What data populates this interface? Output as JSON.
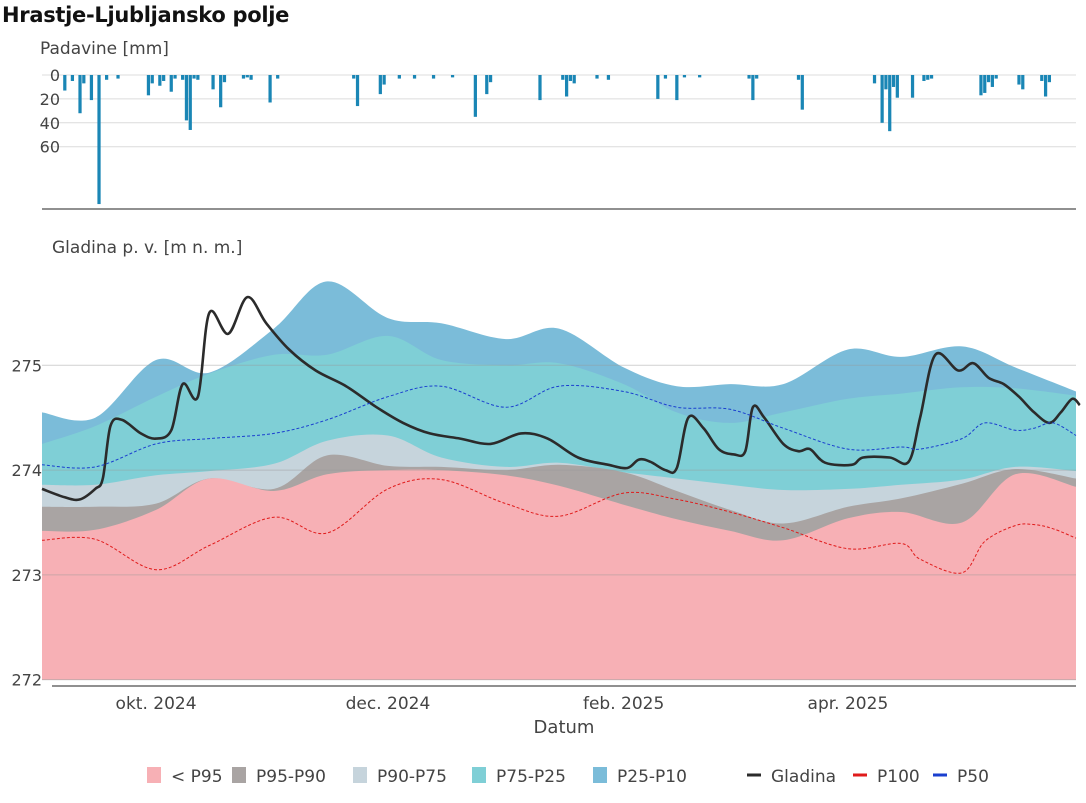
{
  "title": "Hrastje-Ljubljansko polje",
  "chart_data": [
    {
      "type": "bar",
      "ylabel": "Padavine [mm]",
      "yticks": [
        0,
        20,
        40,
        60
      ],
      "ylim_reversed": [
        0,
        110
      ],
      "x_domain": [
        "2024-09-01",
        "2025-05-31"
      ],
      "bars": [
        [
          "2024-09-07",
          13
        ],
        [
          "2024-09-09",
          5
        ],
        [
          "2024-09-11",
          32
        ],
        [
          "2024-09-12",
          7
        ],
        [
          "2024-09-14",
          21
        ],
        [
          "2024-09-16",
          108
        ],
        [
          "2024-09-18",
          4
        ],
        [
          "2024-09-21",
          3
        ],
        [
          "2024-09-29",
          17
        ],
        [
          "2024-09-30",
          7
        ],
        [
          "2024-10-02",
          9
        ],
        [
          "2024-10-03",
          5
        ],
        [
          "2024-10-05",
          14
        ],
        [
          "2024-10-06",
          3
        ],
        [
          "2024-10-08",
          4
        ],
        [
          "2024-10-09",
          38
        ],
        [
          "2024-10-10",
          46
        ],
        [
          "2024-10-11",
          3
        ],
        [
          "2024-10-12",
          4
        ],
        [
          "2024-10-16",
          12
        ],
        [
          "2024-10-18",
          27
        ],
        [
          "2024-10-19",
          6
        ],
        [
          "2024-10-24",
          3
        ],
        [
          "2024-10-25",
          2
        ],
        [
          "2024-10-26",
          4
        ],
        [
          "2024-10-31",
          23
        ],
        [
          "2024-11-02",
          3
        ],
        [
          "2024-11-22",
          3
        ],
        [
          "2024-11-23",
          26
        ],
        [
          "2024-11-29",
          16
        ],
        [
          "2024-11-30",
          8
        ],
        [
          "2024-12-04",
          3
        ],
        [
          "2024-12-08",
          3
        ],
        [
          "2024-12-13",
          3
        ],
        [
          "2024-12-18",
          2
        ],
        [
          "2024-12-24",
          35
        ],
        [
          "2024-12-27",
          16
        ],
        [
          "2024-12-28",
          6
        ],
        [
          "2025-01-10",
          21
        ],
        [
          "2025-01-16",
          4
        ],
        [
          "2025-01-17",
          18
        ],
        [
          "2025-01-18",
          5
        ],
        [
          "2025-01-19",
          7
        ],
        [
          "2025-01-25",
          3
        ],
        [
          "2025-01-28",
          4
        ],
        [
          "2025-02-10",
          20
        ],
        [
          "2025-02-12",
          3
        ],
        [
          "2025-02-15",
          21
        ],
        [
          "2025-02-17",
          2
        ],
        [
          "2025-02-21",
          2
        ],
        [
          "2025-03-06",
          3
        ],
        [
          "2025-03-07",
          21
        ],
        [
          "2025-03-08",
          3
        ],
        [
          "2025-03-19",
          4
        ],
        [
          "2025-03-20",
          29
        ],
        [
          "2025-04-08",
          7
        ],
        [
          "2025-04-10",
          40
        ],
        [
          "2025-04-11",
          12
        ],
        [
          "2025-04-12",
          47
        ],
        [
          "2025-04-13",
          10
        ],
        [
          "2025-04-14",
          19
        ],
        [
          "2025-04-18",
          19
        ],
        [
          "2025-04-21",
          5
        ],
        [
          "2025-04-22",
          4
        ],
        [
          "2025-04-23",
          3
        ],
        [
          "2025-05-06",
          17
        ],
        [
          "2025-05-07",
          15
        ],
        [
          "2025-05-08",
          6
        ],
        [
          "2025-05-09",
          10
        ],
        [
          "2025-05-10",
          3
        ],
        [
          "2025-05-16",
          8
        ],
        [
          "2025-05-17",
          12
        ],
        [
          "2025-05-22",
          5
        ],
        [
          "2025-05-23",
          18
        ],
        [
          "2025-05-24",
          6
        ]
      ],
      "color": "#1a86b5"
    },
    {
      "type": "area",
      "ylabel": "Gladina p. v. [m n. m.]",
      "xlabel": "Datum",
      "yticks": [
        272,
        273,
        274,
        275
      ],
      "ylim": [
        271.94,
        276.3
      ],
      "x_domain": [
        "2024-09-01",
        "2025-05-31"
      ],
      "xticks": [
        {
          "date": "2024-10-01",
          "label": "okt. 2024"
        },
        {
          "date": "2024-12-01",
          "label": "dec. 2024"
        },
        {
          "date": "2025-02-01",
          "label": "feb. 2025"
        },
        {
          "date": "2025-04-01",
          "label": "apr. 2025"
        }
      ],
      "band_dates": [
        "2024-09-01",
        "2024-09-15",
        "2024-10-01",
        "2024-10-15",
        "2024-11-01",
        "2024-11-15",
        "2024-12-01",
        "2024-12-15",
        "2025-01-01",
        "2025-01-15",
        "2025-02-01",
        "2025-02-15",
        "2025-03-01",
        "2025-03-15",
        "2025-04-01",
        "2025-04-15",
        "2025-05-01",
        "2025-05-15",
        "2025-05-31"
      ],
      "bands": [
        {
          "name": "< P95",
          "color": "#f7b0b5",
          "values": [
            273.42,
            273.43,
            273.62,
            273.92,
            273.8,
            273.96,
            274.0,
            274.0,
            273.95,
            273.85,
            273.67,
            273.53,
            273.42,
            273.33,
            273.54,
            273.6,
            273.5,
            273.96,
            273.84
          ]
        },
        {
          "name": "P95-P90",
          "color": "#a9a4a3",
          "values": [
            273.65,
            273.65,
            273.68,
            273.92,
            273.82,
            274.14,
            274.04,
            274.03,
            274.0,
            274.05,
            273.98,
            273.8,
            273.62,
            273.49,
            273.65,
            273.73,
            273.87,
            274.01,
            273.92
          ]
        },
        {
          "name": "P90-P75",
          "color": "#c6d4dc",
          "values": [
            273.86,
            273.86,
            273.95,
            273.99,
            274.06,
            274.28,
            274.33,
            274.12,
            274.03,
            274.07,
            273.98,
            273.92,
            273.86,
            273.81,
            273.82,
            273.86,
            273.91,
            274.03,
            273.99
          ]
        },
        {
          "name": "P75-P25",
          "color": "#7fcfd6",
          "values": [
            274.25,
            274.42,
            274.7,
            274.92,
            275.1,
            275.1,
            275.28,
            275.05,
            275.0,
            275.02,
            274.82,
            274.55,
            274.45,
            274.55,
            274.68,
            274.73,
            274.79,
            274.78,
            274.71
          ]
        },
        {
          "name": "P25-P10",
          "color": "#7bbcd9",
          "values": [
            274.55,
            274.5,
            275.05,
            274.93,
            275.35,
            275.8,
            275.45,
            275.4,
            275.25,
            275.35,
            274.98,
            274.8,
            274.82,
            274.82,
            275.15,
            275.08,
            275.18,
            274.98,
            274.75
          ]
        }
      ],
      "lines": [
        {
          "name": "Gladina",
          "color": "#2b2b2b",
          "style": "solid",
          "points": [
            [
              "2024-09-01",
              273.82
            ],
            [
              "2024-09-07",
              273.74
            ],
            [
              "2024-09-11",
              273.72
            ],
            [
              "2024-09-15",
              273.82
            ],
            [
              "2024-09-17",
              273.92
            ],
            [
              "2024-09-19",
              274.42
            ],
            [
              "2024-09-22",
              274.48
            ],
            [
              "2024-09-27",
              274.35
            ],
            [
              "2024-10-01",
              274.3
            ],
            [
              "2024-10-05",
              274.38
            ],
            [
              "2024-10-08",
              274.82
            ],
            [
              "2024-10-12",
              274.7
            ],
            [
              "2024-10-15",
              275.5
            ],
            [
              "2024-10-20",
              275.3
            ],
            [
              "2024-10-25",
              275.65
            ],
            [
              "2024-10-30",
              275.4
            ],
            [
              "2024-11-05",
              275.15
            ],
            [
              "2024-11-12",
              274.95
            ],
            [
              "2024-11-20",
              274.8
            ],
            [
              "2024-11-28",
              274.6
            ],
            [
              "2024-12-05",
              274.45
            ],
            [
              "2024-12-12",
              274.35
            ],
            [
              "2024-12-20",
              274.3
            ],
            [
              "2024-12-28",
              274.25
            ],
            [
              "2025-01-05",
              274.35
            ],
            [
              "2025-01-12",
              274.3
            ],
            [
              "2025-01-20",
              274.12
            ],
            [
              "2025-01-28",
              274.05
            ],
            [
              "2025-02-02",
              274.02
            ],
            [
              "2025-02-05",
              274.1
            ],
            [
              "2025-02-08",
              274.08
            ],
            [
              "2025-02-12",
              274.0
            ],
            [
              "2025-02-15",
              274.02
            ],
            [
              "2025-02-18",
              274.5
            ],
            [
              "2025-02-22",
              274.4
            ],
            [
              "2025-02-26",
              274.2
            ],
            [
              "2025-03-02",
              274.15
            ],
            [
              "2025-03-05",
              274.18
            ],
            [
              "2025-03-07",
              274.6
            ],
            [
              "2025-03-10",
              274.5
            ],
            [
              "2025-03-15",
              274.25
            ],
            [
              "2025-03-19",
              274.18
            ],
            [
              "2025-03-22",
              274.2
            ],
            [
              "2025-03-26",
              274.07
            ],
            [
              "2025-04-02",
              274.05
            ],
            [
              "2025-04-05",
              274.12
            ],
            [
              "2025-04-12",
              274.12
            ],
            [
              "2025-04-17",
              274.08
            ],
            [
              "2025-04-20",
              274.5
            ],
            [
              "2025-04-24",
              275.1
            ],
            [
              "2025-04-30",
              274.95
            ],
            [
              "2025-05-04",
              275.02
            ],
            [
              "2025-05-08",
              274.88
            ],
            [
              "2025-05-12",
              274.82
            ],
            [
              "2025-05-16",
              274.7
            ],
            [
              "2025-05-20",
              274.55
            ],
            [
              "2025-05-24",
              274.45
            ],
            [
              "2025-05-27",
              274.55
            ],
            [
              "2025-05-30",
              274.68
            ],
            [
              "2025-06-01",
              274.62
            ]
          ]
        },
        {
          "name": "P100",
          "color": "#e01b1b",
          "style": "dashed",
          "values": [
            273.33,
            273.34,
            273.05,
            273.28,
            273.55,
            273.4,
            273.82,
            273.91,
            273.68,
            273.56,
            273.78,
            273.72,
            273.6,
            273.45,
            273.25,
            273.3,
            273.15,
            273.02,
            273.32,
            273.47,
            273.48,
            273.44,
            273.35
          ]
        },
        {
          "name": "P50",
          "color": "#1a3fcf",
          "style": "dashed",
          "values": [
            274.05,
            274.03,
            274.25,
            274.3,
            274.35,
            274.48,
            274.7,
            274.8,
            274.6,
            274.8,
            274.75,
            274.6,
            274.58,
            274.4,
            274.2,
            274.22,
            274.2,
            274.3,
            274.45,
            274.38,
            274.4,
            274.45,
            274.33
          ]
        }
      ],
      "dashed_dates": [
        "2024-09-01",
        "2024-09-15",
        "2024-10-01",
        "2024-10-15",
        "2024-11-01",
        "2024-11-15",
        "2024-12-01",
        "2024-12-15",
        "2025-01-01",
        "2025-01-15",
        "2025-02-01",
        "2025-02-15",
        "2025-03-01",
        "2025-03-15",
        "2025-04-01",
        "2025-04-15",
        "2025-04-20",
        "2025-05-01",
        "2025-05-07",
        "2025-05-15",
        "2025-05-20",
        "2025-05-25",
        "2025-05-31"
      ]
    }
  ],
  "legend": [
    {
      "label": "< P95",
      "color": "#f7b0b5",
      "kind": "box"
    },
    {
      "label": "P95-P90",
      "color": "#a9a4a3",
      "kind": "box"
    },
    {
      "label": "P90-P75",
      "color": "#c6d4dc",
      "kind": "box"
    },
    {
      "label": "P75-P25",
      "color": "#7fcfd6",
      "kind": "box"
    },
    {
      "label": "P25-P10",
      "color": "#7bbcd9",
      "kind": "box"
    },
    {
      "label": "Gladina",
      "color": "#2b2b2b",
      "kind": "line"
    },
    {
      "label": "P100",
      "color": "#e01b1b",
      "kind": "line"
    },
    {
      "label": "P50",
      "color": "#1a3fcf",
      "kind": "line"
    }
  ]
}
